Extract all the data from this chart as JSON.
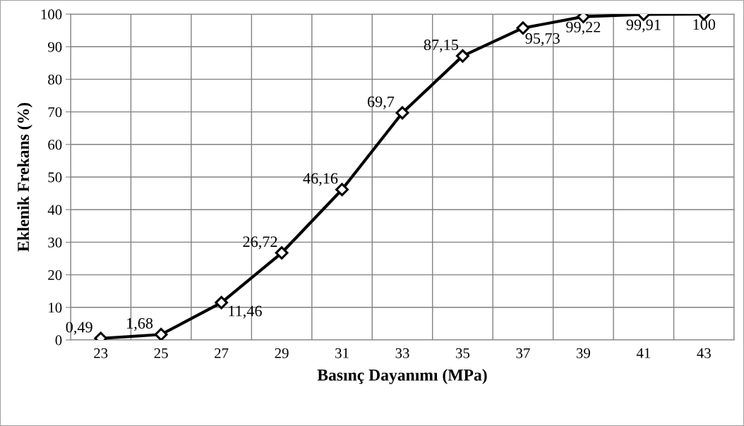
{
  "chart_data": {
    "type": "line",
    "xlabel": "Basınç Dayanımı (MPa)",
    "ylabel": "Eklenik Frekans (%)",
    "categories": [
      "23",
      "25",
      "27",
      "29",
      "31",
      "33",
      "35",
      "37",
      "39",
      "41",
      "43"
    ],
    "series": [
      {
        "color": "#000000",
        "values": [
          0.49,
          1.68,
          11.46,
          26.72,
          46.16,
          69.7,
          87.15,
          95.73,
          99.22,
          99.91,
          100
        ],
        "value_labels": [
          "0,49",
          "1,68",
          "11,46",
          "26,72",
          "46,16",
          "69,7",
          "87,15",
          "95,73",
          "99,22",
          "99,91",
          "100"
        ]
      }
    ],
    "ylim": [
      0,
      100
    ],
    "yticks": [
      0,
      10,
      20,
      30,
      40,
      50,
      60,
      70,
      80,
      90,
      100
    ],
    "grid": true,
    "marker": "diamond",
    "line_style": "solid",
    "legend": false
  }
}
